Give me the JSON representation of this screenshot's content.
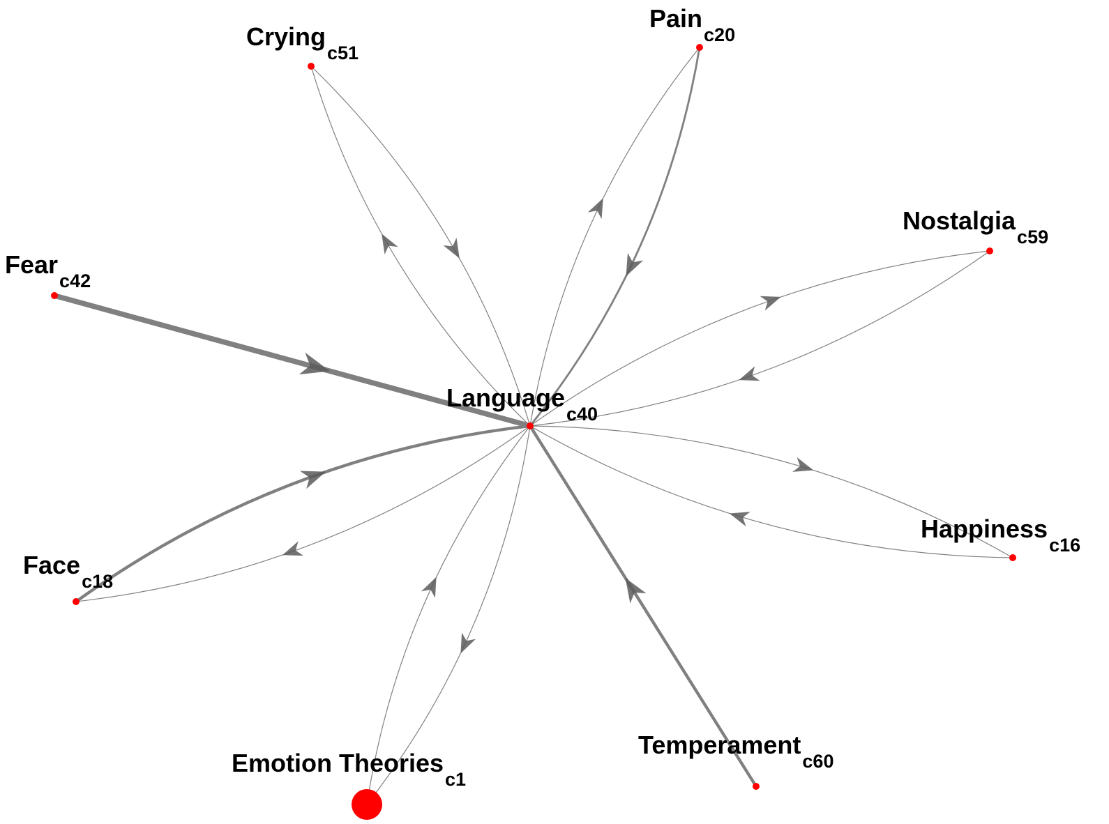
{
  "diagram": {
    "type": "directed-network",
    "colors": {
      "node": "#ff0000",
      "edge": "#808080",
      "arrow": "#5a5a5a",
      "label": "#000000"
    },
    "nodes": [
      {
        "id": "language",
        "label": "Language",
        "sub": "c40"
      },
      {
        "id": "crying",
        "label": "Crying",
        "sub": "c51"
      },
      {
        "id": "pain",
        "label": "Pain",
        "sub": "c20"
      },
      {
        "id": "nostalgia",
        "label": "Nostalgia",
        "sub": "c59"
      },
      {
        "id": "fear",
        "label": "Fear",
        "sub": "c42"
      },
      {
        "id": "happiness",
        "label": "Happiness",
        "sub": "c16"
      },
      {
        "id": "face",
        "label": "Face",
        "sub": "c18"
      },
      {
        "id": "temperament",
        "label": "Temperament",
        "sub": "c60"
      },
      {
        "id": "emotion-theories",
        "label": "Emotion Theories",
        "sub": "c1"
      }
    ],
    "edges": [
      {
        "from": "crying",
        "to": "language",
        "weight": 1
      },
      {
        "from": "language",
        "to": "crying",
        "weight": 1
      },
      {
        "from": "pain",
        "to": "language",
        "weight": 2
      },
      {
        "from": "language",
        "to": "pain",
        "weight": 1
      },
      {
        "from": "nostalgia",
        "to": "language",
        "weight": 1
      },
      {
        "from": "language",
        "to": "nostalgia",
        "weight": 1
      },
      {
        "from": "fear",
        "to": "language",
        "weight": 5
      },
      {
        "from": "happiness",
        "to": "language",
        "weight": 1
      },
      {
        "from": "language",
        "to": "happiness",
        "weight": 1
      },
      {
        "from": "language",
        "to": "face",
        "weight": 1
      },
      {
        "from": "face",
        "to": "language",
        "weight": 3
      },
      {
        "from": "temperament",
        "to": "language",
        "weight": 3
      },
      {
        "from": "language",
        "to": "emotion-theories",
        "weight": 1
      },
      {
        "from": "emotion-theories",
        "to": "language",
        "weight": 1
      }
    ]
  }
}
